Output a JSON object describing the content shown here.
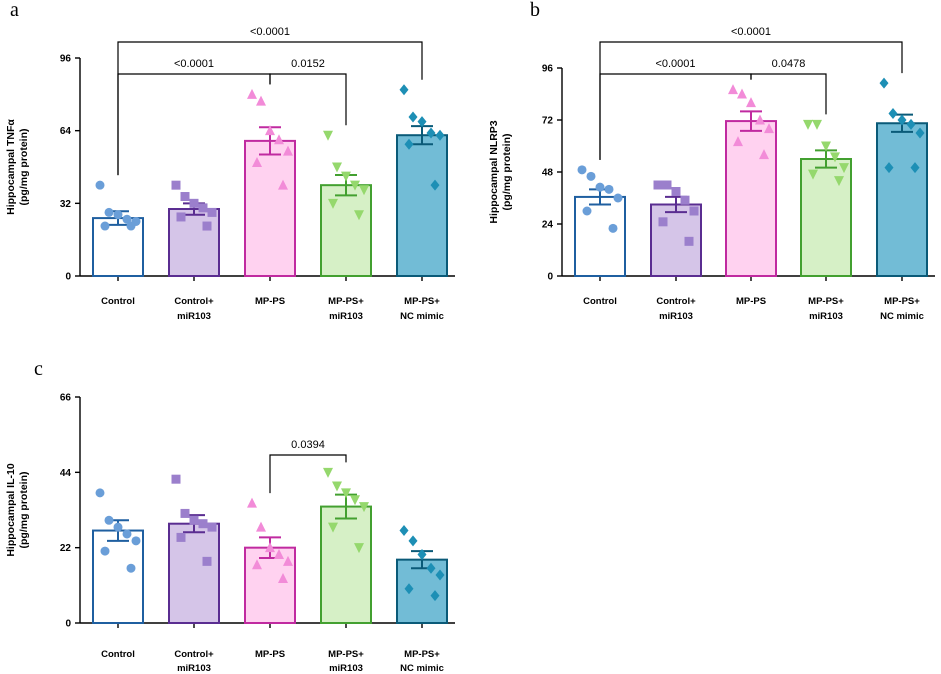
{
  "chart_data": [
    {
      "type": "bar",
      "panel_label": "a",
      "ylabel_line1": "Hippocampal TNFα",
      "ylabel_line2": "(pg/mg protein)",
      "ylim": [
        0,
        96
      ],
      "yticks": [
        0,
        32,
        64,
        96
      ],
      "categories": [
        {
          "line1": "Control",
          "line2": ""
        },
        {
          "line1": "Control+",
          "line2": "miR103"
        },
        {
          "line1": "MP-PS",
          "line2": ""
        },
        {
          "line1": "MP-PS+",
          "line2": "miR103"
        },
        {
          "line1": "MP-PS+",
          "line2": "NC mimic"
        }
      ],
      "means": [
        25.5,
        29.5,
        59.5,
        40,
        62
      ],
      "sem": [
        3,
        2.5,
        6,
        4.5,
        4
      ],
      "points": [
        [
          40,
          28,
          27,
          25,
          24,
          22,
          22
        ],
        [
          40,
          35,
          32,
          30,
          28,
          26,
          22
        ],
        [
          80,
          77,
          64,
          60,
          55,
          50,
          40
        ],
        [
          62,
          48,
          44,
          40,
          38,
          32,
          27
        ],
        [
          82,
          70,
          68,
          63,
          62,
          58,
          40
        ]
      ],
      "comparisons": [
        {
          "from": 0,
          "to": 4,
          "label": "<0.0001"
        },
        {
          "from": 0,
          "to": 2,
          "label": "<0.0001"
        },
        {
          "from": 2,
          "to": 3,
          "label": "0.0152"
        }
      ]
    },
    {
      "type": "bar",
      "panel_label": "b",
      "ylabel_line1": "Hippocampal NLRP3",
      "ylabel_line2": "(pg/mg protein)",
      "ylim": [
        0,
        96
      ],
      "yticks": [
        0,
        24,
        48,
        72,
        96
      ],
      "categories": [
        {
          "line1": "Control",
          "line2": ""
        },
        {
          "line1": "Control+",
          "line2": "miR103"
        },
        {
          "line1": "MP-PS",
          "line2": ""
        },
        {
          "line1": "MP-PS+",
          "line2": "miR103"
        },
        {
          "line1": "MP-PS+",
          "line2": "NC mimic"
        }
      ],
      "means": [
        36.5,
        33,
        71.5,
        54,
        70.5
      ],
      "sem": [
        3.5,
        3.5,
        4.5,
        4,
        4
      ],
      "points": [
        [
          49,
          46,
          41,
          40,
          36,
          30,
          22
        ],
        [
          42,
          42,
          39,
          35,
          30,
          25,
          16
        ],
        [
          86,
          84,
          80,
          72,
          68,
          62,
          56
        ],
        [
          70,
          70,
          60,
          55,
          50,
          47,
          44
        ],
        [
          89,
          75,
          72,
          70,
          66,
          50,
          50
        ]
      ],
      "comparisons": [
        {
          "from": 0,
          "to": 4,
          "label": "<0.0001"
        },
        {
          "from": 0,
          "to": 2,
          "label": "<0.0001"
        },
        {
          "from": 2,
          "to": 3,
          "label": "0.0478"
        }
      ]
    },
    {
      "type": "bar",
      "panel_label": "c",
      "ylabel_line1": "Hippocampal IL-10",
      "ylabel_line2": "(pg/mg protein)",
      "ylim": [
        0,
        66
      ],
      "yticks": [
        0,
        22,
        44,
        66
      ],
      "categories": [
        {
          "line1": "Control",
          "line2": ""
        },
        {
          "line1": "Control+",
          "line2": "miR103"
        },
        {
          "line1": "MP-PS",
          "line2": ""
        },
        {
          "line1": "MP-PS+",
          "line2": "miR103"
        },
        {
          "line1": "MP-PS+",
          "line2": "NC mimic"
        }
      ],
      "means": [
        27,
        29,
        22,
        34,
        18.5
      ],
      "sem": [
        3,
        2.5,
        3,
        3.5,
        2.5
      ],
      "points": [
        [
          38,
          30,
          28,
          26,
          24,
          21,
          16
        ],
        [
          42,
          32,
          30,
          29,
          28,
          25,
          18
        ],
        [
          35,
          28,
          22,
          20,
          18,
          17,
          13
        ],
        [
          44,
          40,
          38,
          36,
          34,
          28,
          22
        ],
        [
          27,
          24,
          20,
          16,
          14,
          10,
          8
        ]
      ],
      "comparisons": [
        {
          "from": 2,
          "to": 3,
          "label": "0.0394"
        }
      ]
    }
  ],
  "series_styles": [
    {
      "name": "Control",
      "edge": "#1f5fa0",
      "fill": "#ffffff",
      "marker": "circle",
      "point": "#6a9ed8"
    },
    {
      "name": "Control+ miR103",
      "edge": "#5a2d91",
      "fill": "#d5c5e8",
      "marker": "square",
      "point": "#9b7fcc"
    },
    {
      "name": "MP-PS",
      "edge": "#c02aa0",
      "fill": "#ffd2f0",
      "marker": "triangle-up",
      "point": "#f28bd8"
    },
    {
      "name": "MP-PS+ miR103",
      "edge": "#43a030",
      "fill": "#d6f0c6",
      "marker": "triangle-down",
      "point": "#95d86d"
    },
    {
      "name": "MP-PS+ NC mimic",
      "edge": "#0a5a78",
      "fill": "#72bcd6",
      "marker": "diamond",
      "point": "#1d8fb5"
    }
  ]
}
